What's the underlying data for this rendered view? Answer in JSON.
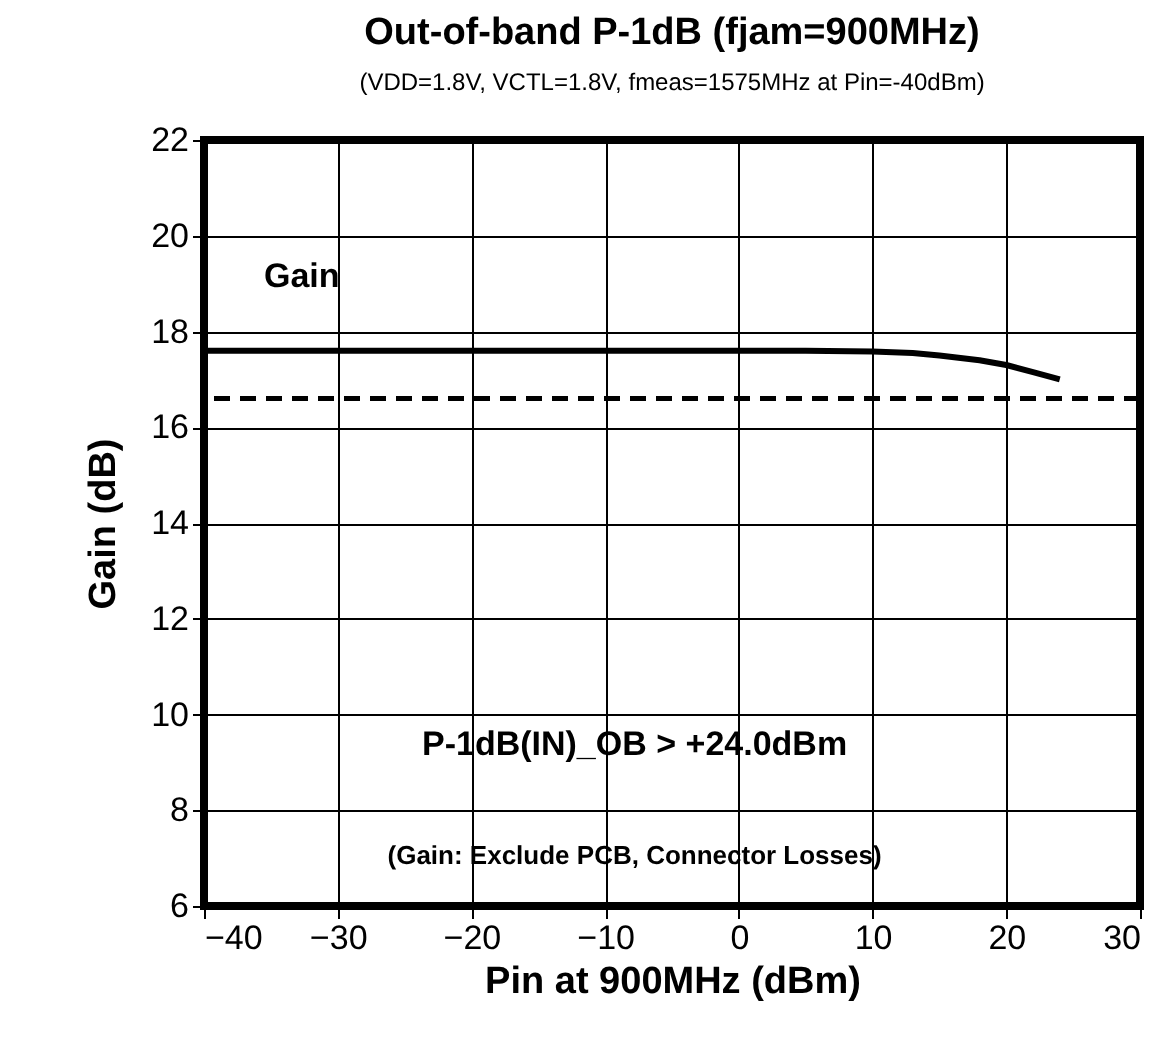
{
  "chart_data": {
    "type": "line",
    "title": "Out-of-band P-1dB (fjam=900MHz)",
    "subtitle": "(VDD=1.8V, VCTL=1.8V, fmeas=1575MHz at Pin=-40dBm)",
    "xlabel": "Pin at 900MHz (dBm)",
    "ylabel": "Gain (dB)",
    "x": [
      -40,
      -30,
      -20,
      -10,
      0,
      5,
      10,
      13,
      15,
      18,
      20,
      22,
      24
    ],
    "series": [
      {
        "name": "Gain",
        "color": "#000000",
        "values": [
          17.6,
          17.6,
          17.6,
          17.6,
          17.6,
          17.6,
          17.58,
          17.55,
          17.5,
          17.4,
          17.3,
          17.15,
          17.0
        ]
      }
    ],
    "xlim": [
      -40,
      30
    ],
    "xticks": [
      -40,
      -30,
      -20,
      -10,
      0,
      10,
      20,
      30
    ],
    "ylim": [
      6,
      22
    ],
    "yticks": [
      6,
      8,
      10,
      12,
      14,
      16,
      18,
      20,
      22
    ],
    "ref_lines": [
      {
        "axis": "y",
        "value": 16.6,
        "line_style": "dashed",
        "color": "#000000"
      }
    ],
    "annotations": [
      "P-1dB(IN)_OB > +24.0dBm",
      "(Gain: Exclude PCB, Connector Losses)"
    ],
    "grid": true,
    "line_style": "solid",
    "marker": "none"
  }
}
